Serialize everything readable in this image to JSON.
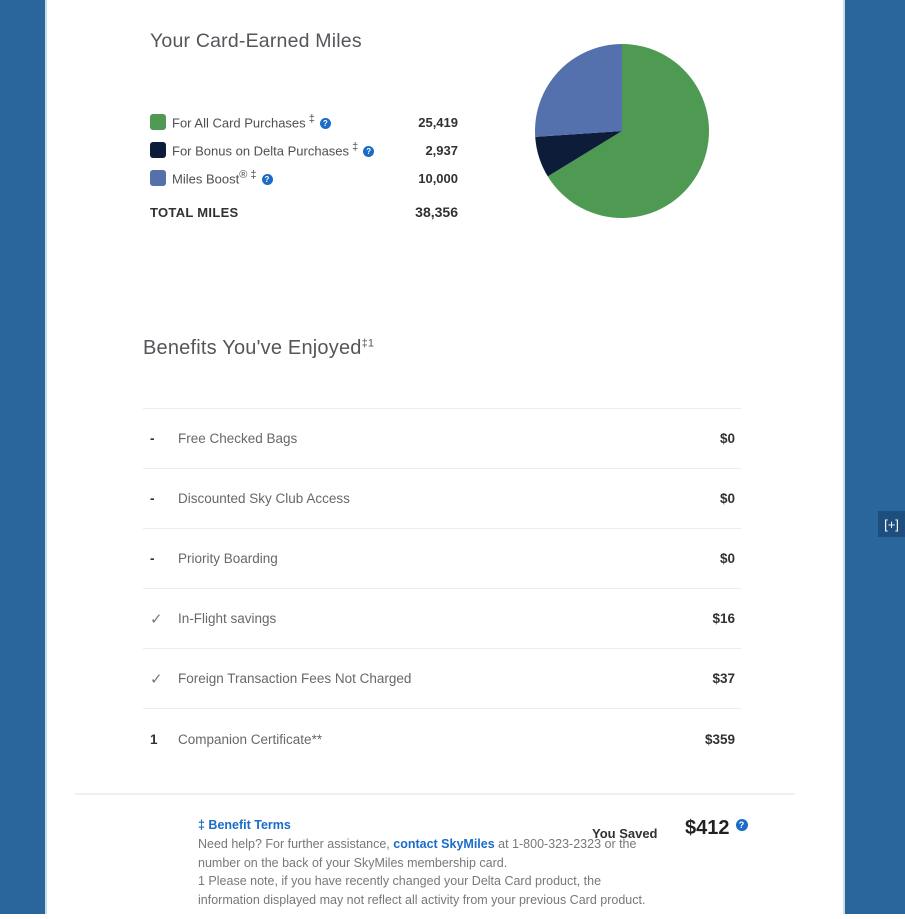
{
  "theme": {
    "background_blue": "#2A659C",
    "edge_line": "#C9DCEC",
    "link_blue": "#1B6CC6",
    "feedback_tab_blue": "#1E4E7E"
  },
  "icons": {
    "help_glyph": "?"
  },
  "miles_section": {
    "title": "Your Card-Earned Miles",
    "legend": [
      {
        "label": "For All Card Purchases",
        "dagger": "‡",
        "value": "25,419",
        "color": "#4E9A52"
      },
      {
        "label": "For Bonus on Delta Purchases",
        "dagger": "‡",
        "value": "2,937",
        "color": "#0D1C38"
      },
      {
        "label": "Miles Boost",
        "reg": "®",
        "dagger": "‡",
        "value": "10,000",
        "color": "#5470AD"
      }
    ],
    "total_label": "TOTAL MILES",
    "total_value": "38,356"
  },
  "chart_data": {
    "type": "pie",
    "title": "Your Card-Earned Miles",
    "labels": [
      "For All Card Purchases",
      "For Bonus on Delta Purchases",
      "Miles Boost®"
    ],
    "values": [
      25419,
      2937,
      10000
    ],
    "colors": [
      "#4E9A52",
      "#0D1C38",
      "#5470AD"
    ],
    "total": 38356,
    "start_angle_deg_from_top": 0,
    "direction": "clockwise",
    "legend_position": "left"
  },
  "benefits_section": {
    "heading": "Benefits You've Enjoyed",
    "heading_sup": "‡1",
    "rows": [
      {
        "marker": "-",
        "label": "Free Checked Bags",
        "value": "$0"
      },
      {
        "marker": "-",
        "label": "Discounted Sky Club Access",
        "value": "$0"
      },
      {
        "marker": "-",
        "label": "Priority Boarding",
        "value": "$0"
      },
      {
        "marker": "✓",
        "label": "In-Flight savings",
        "value": "$16"
      },
      {
        "marker": "✓",
        "label": "Foreign Transaction Fees Not Charged",
        "value": "$37"
      },
      {
        "marker": "1",
        "label": "Companion Certificate**",
        "value": "$359"
      }
    ]
  },
  "footer": {
    "benefit_terms_link": "‡ Benefit Terms",
    "help_text_before": "Need help? For further assistance, ",
    "contact_link": "contact SkyMiles",
    "help_text_after": " at 1-800-323-2323 or the number on the back of your SkyMiles membership card.",
    "note_text": "1 Please note, if you have recently changed your Delta Card product, the information displayed may not reflect all activity from your previous Card product.",
    "you_saved_label": "You Saved",
    "you_saved_value": "$412"
  },
  "feedback_tab": {
    "label": "[+]"
  }
}
